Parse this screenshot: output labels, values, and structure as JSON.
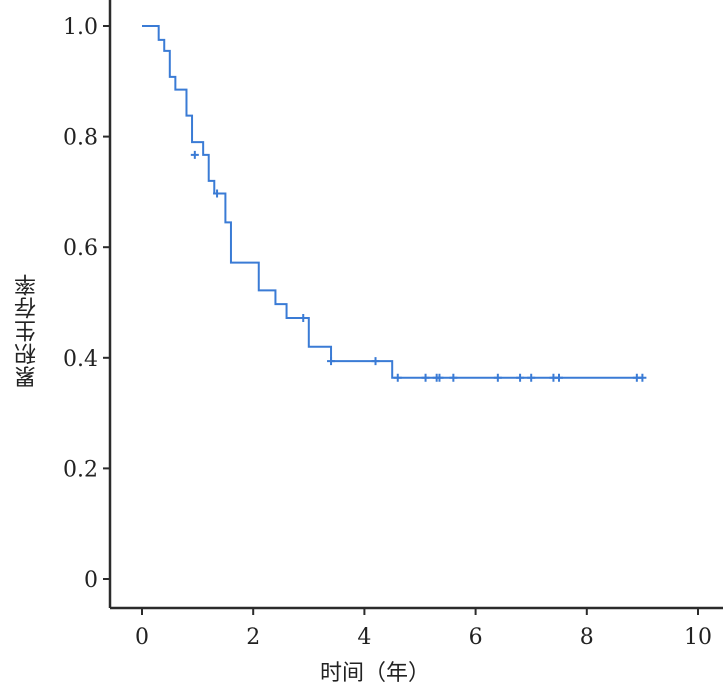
{
  "chart_data": {
    "type": "line",
    "title": "",
    "xlabel": "时间（年）",
    "ylabel": "累积生存率",
    "xlim": [
      -0.6,
      10.3
    ],
    "ylim": [
      -0.05,
      1.04
    ],
    "x_ticks": [
      0,
      2,
      4,
      6,
      8,
      10
    ],
    "y_ticks": [
      0,
      0.2,
      0.4,
      0.6,
      0.8,
      1.0
    ],
    "x_tick_labels": [
      "0",
      "2",
      "4",
      "6",
      "8",
      "10"
    ],
    "y_tick_labels": [
      "0",
      "0.2",
      "0.4",
      "0.6",
      "0.8",
      "1.0"
    ],
    "grid": false,
    "series": [
      {
        "color": "#3a7bd5",
        "step_points": [
          [
            0,
            1.0
          ],
          [
            0.3,
            0.975
          ],
          [
            0.4,
            0.955
          ],
          [
            0.5,
            0.908
          ],
          [
            0.6,
            0.885
          ],
          [
            0.8,
            0.838
          ],
          [
            0.9,
            0.79
          ],
          [
            1.1,
            0.767
          ],
          [
            1.2,
            0.72
          ],
          [
            1.3,
            0.697
          ],
          [
            1.5,
            0.645
          ],
          [
            1.6,
            0.572
          ],
          [
            2.1,
            0.522
          ],
          [
            2.4,
            0.497
          ],
          [
            2.6,
            0.472
          ],
          [
            3.0,
            0.42
          ],
          [
            3.4,
            0.394
          ],
          [
            4.5,
            0.364
          ],
          [
            9.0,
            0.364
          ]
        ],
        "censored": [
          [
            0.95,
            0.767
          ],
          [
            1.35,
            0.697
          ],
          [
            2.9,
            0.472
          ],
          [
            3.4,
            0.394
          ],
          [
            4.2,
            0.394
          ],
          [
            4.6,
            0.364
          ],
          [
            5.1,
            0.364
          ],
          [
            5.3,
            0.364
          ],
          [
            5.35,
            0.364
          ],
          [
            5.6,
            0.364
          ],
          [
            6.4,
            0.364
          ],
          [
            6.8,
            0.364
          ],
          [
            7.0,
            0.364
          ],
          [
            7.4,
            0.364
          ],
          [
            7.5,
            0.364
          ],
          [
            8.9,
            0.364
          ],
          [
            9.0,
            0.364
          ]
        ]
      }
    ]
  }
}
